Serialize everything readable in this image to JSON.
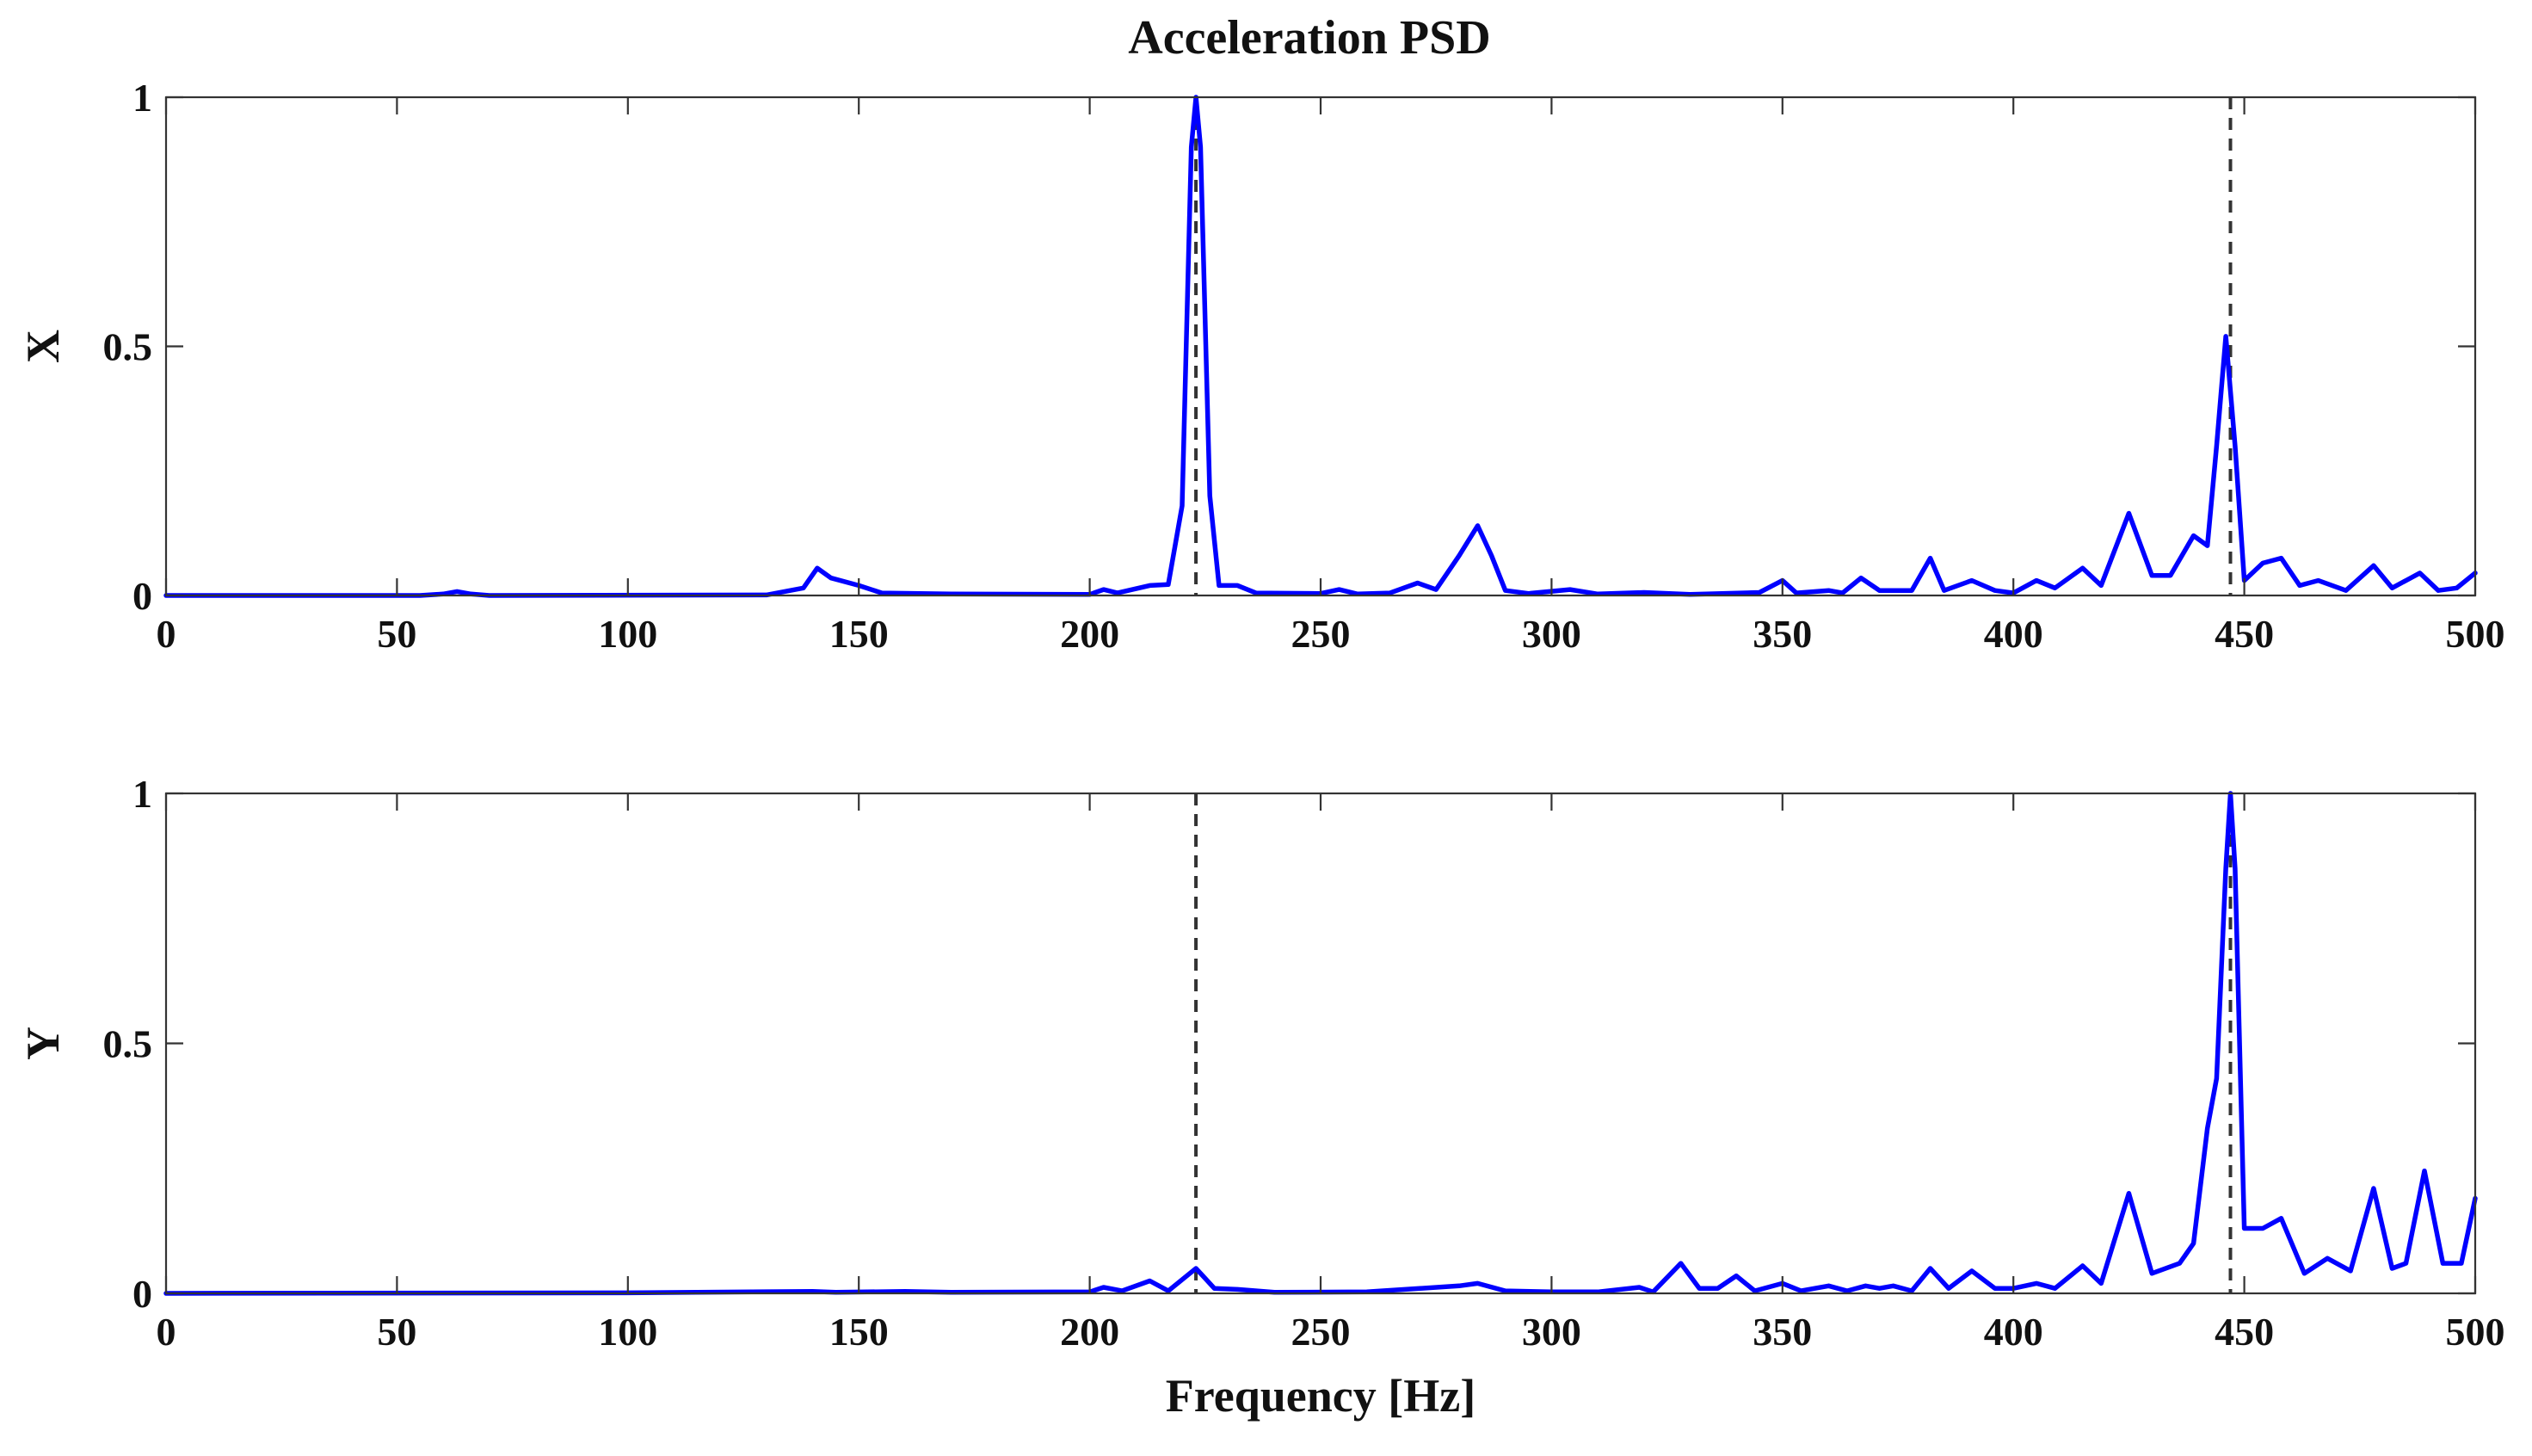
{
  "figure": {
    "title": "Acceleration PSD"
  },
  "chart_data": [
    {
      "type": "line",
      "title": "Acceleration PSD",
      "xlabel": "",
      "ylabel": "X",
      "xlim": [
        0,
        500
      ],
      "ylim": [
        0,
        1
      ],
      "xticks": [
        0,
        50,
        100,
        150,
        200,
        250,
        300,
        350,
        400,
        450,
        500
      ],
      "yticks": [
        0,
        0.5,
        1
      ],
      "ytick_labels": [
        "0",
        "0.5",
        "1"
      ],
      "grid": false,
      "series_color": "#0000ff",
      "markers": [
        223,
        447
      ],
      "series": [
        {
          "name": "",
          "points": [
            [
              0,
              0
            ],
            [
              55,
              0
            ],
            [
              60,
              0.003
            ],
            [
              63,
              0.008
            ],
            [
              66,
              0.003
            ],
            [
              70,
              0
            ],
            [
              130,
              0.001
            ],
            [
              138,
              0.015
            ],
            [
              141,
              0.055
            ],
            [
              144,
              0.035
            ],
            [
              150,
              0.02
            ],
            [
              155,
              0.005
            ],
            [
              170,
              0.003
            ],
            [
              200,
              0.002
            ],
            [
              203,
              0.012
            ],
            [
              206,
              0.005
            ],
            [
              213,
              0.02
            ],
            [
              217,
              0.022
            ],
            [
              220,
              0.18
            ],
            [
              222,
              0.9
            ],
            [
              223,
              1.0
            ],
            [
              224,
              0.9
            ],
            [
              226,
              0.2
            ],
            [
              228,
              0.02
            ],
            [
              232,
              0.02
            ],
            [
              236,
              0.005
            ],
            [
              250,
              0.004
            ],
            [
              254,
              0.012
            ],
            [
              258,
              0.003
            ],
            [
              265,
              0.005
            ],
            [
              271,
              0.025
            ],
            [
              275,
              0.012
            ],
            [
              280,
              0.08
            ],
            [
              284,
              0.14
            ],
            [
              287,
              0.08
            ],
            [
              290,
              0.01
            ],
            [
              295,
              0.004
            ],
            [
              304,
              0.012
            ],
            [
              310,
              0.003
            ],
            [
              320,
              0.006
            ],
            [
              330,
              0.002
            ],
            [
              345,
              0.006
            ],
            [
              350,
              0.03
            ],
            [
              353,
              0.005
            ],
            [
              360,
              0.01
            ],
            [
              363,
              0.005
            ],
            [
              367,
              0.035
            ],
            [
              371,
              0.01
            ],
            [
              378,
              0.01
            ],
            [
              382,
              0.075
            ],
            [
              385,
              0.01
            ],
            [
              391,
              0.03
            ],
            [
              396,
              0.01
            ],
            [
              400,
              0.005
            ],
            [
              405,
              0.03
            ],
            [
              409,
              0.015
            ],
            [
              415,
              0.055
            ],
            [
              419,
              0.02
            ],
            [
              425,
              0.165
            ],
            [
              430,
              0.04
            ],
            [
              434,
              0.04
            ],
            [
              439,
              0.12
            ],
            [
              442,
              0.1
            ],
            [
              444,
              0.3
            ],
            [
              446,
              0.52
            ],
            [
              448,
              0.3
            ],
            [
              450,
              0.03
            ],
            [
              454,
              0.065
            ],
            [
              458,
              0.075
            ],
            [
              462,
              0.02
            ],
            [
              466,
              0.03
            ],
            [
              472,
              0.01
            ],
            [
              478,
              0.06
            ],
            [
              482,
              0.015
            ],
            [
              488,
              0.045
            ],
            [
              492,
              0.01
            ],
            [
              496,
              0.015
            ],
            [
              500,
              0.045
            ]
          ]
        }
      ]
    },
    {
      "type": "line",
      "title": "",
      "xlabel": "Frequency [Hz]",
      "ylabel": "Y",
      "xlim": [
        0,
        500
      ],
      "ylim": [
        0,
        1
      ],
      "xticks": [
        0,
        50,
        100,
        150,
        200,
        250,
        300,
        350,
        400,
        450,
        500
      ],
      "yticks": [
        0,
        0.5,
        1
      ],
      "ytick_labels": [
        "0",
        "0.5",
        "1"
      ],
      "grid": false,
      "series_color": "#0000ff",
      "markers": [
        223,
        447
      ],
      "series": [
        {
          "name": "",
          "points": [
            [
              0,
              0
            ],
            [
              100,
              0.001
            ],
            [
              140,
              0.004
            ],
            [
              145,
              0.002
            ],
            [
              160,
              0.004
            ],
            [
              170,
              0.002
            ],
            [
              200,
              0.003
            ],
            [
              203,
              0.012
            ],
            [
              207,
              0.005
            ],
            [
              213,
              0.025
            ],
            [
              217,
              0.005
            ],
            [
              223,
              0.05
            ],
            [
              227,
              0.01
            ],
            [
              232,
              0.008
            ],
            [
              240,
              0.002
            ],
            [
              260,
              0.003
            ],
            [
              280,
              0.015
            ],
            [
              284,
              0.02
            ],
            [
              290,
              0.005
            ],
            [
              300,
              0.003
            ],
            [
              310,
              0.003
            ],
            [
              319,
              0.012
            ],
            [
              322,
              0.003
            ],
            [
              328,
              0.06
            ],
            [
              332,
              0.01
            ],
            [
              336,
              0.01
            ],
            [
              340,
              0.035
            ],
            [
              344,
              0.005
            ],
            [
              350,
              0.02
            ],
            [
              354,
              0.005
            ],
            [
              360,
              0.015
            ],
            [
              364,
              0.005
            ],
            [
              368,
              0.015
            ],
            [
              371,
              0.01
            ],
            [
              374,
              0.015
            ],
            [
              378,
              0.005
            ],
            [
              382,
              0.05
            ],
            [
              386,
              0.01
            ],
            [
              391,
              0.045
            ],
            [
              396,
              0.01
            ],
            [
              400,
              0.01
            ],
            [
              405,
              0.02
            ],
            [
              409,
              0.01
            ],
            [
              415,
              0.055
            ],
            [
              419,
              0.02
            ],
            [
              425,
              0.2
            ],
            [
              430,
              0.04
            ],
            [
              436,
              0.06
            ],
            [
              439,
              0.1
            ],
            [
              442,
              0.33
            ],
            [
              444,
              0.43
            ],
            [
              446,
              0.85
            ],
            [
              447,
              1.0
            ],
            [
              448,
              0.85
            ],
            [
              450,
              0.13
            ],
            [
              454,
              0.13
            ],
            [
              458,
              0.15
            ],
            [
              463,
              0.04
            ],
            [
              468,
              0.07
            ],
            [
              473,
              0.045
            ],
            [
              478,
              0.21
            ],
            [
              482,
              0.05
            ],
            [
              485,
              0.06
            ],
            [
              489,
              0.245
            ],
            [
              493,
              0.06
            ],
            [
              497,
              0.06
            ],
            [
              500,
              0.19
            ]
          ]
        }
      ]
    }
  ]
}
